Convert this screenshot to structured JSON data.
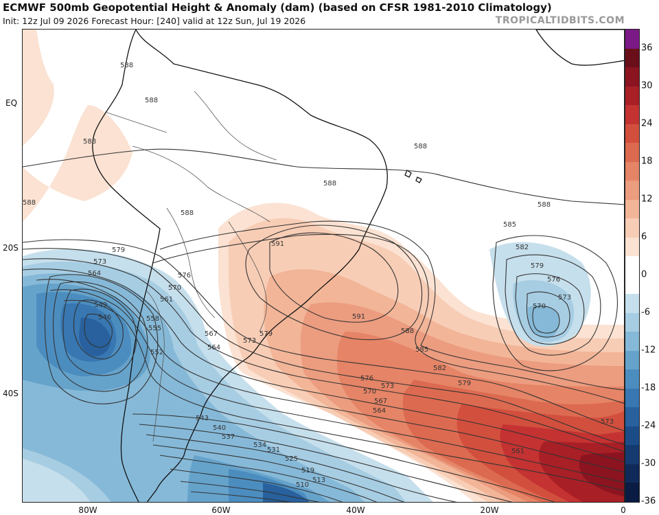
{
  "header": {
    "title": "ECMWF 500mb Geopotential Height & Anomaly (dam) (based on CFSR 1981-2010 Climatology)",
    "subtitle": "Init: 12z Jul 09 2026   Forecast Hour: [240]   valid at 12z Sun, Jul 19 2026",
    "credit": "TROPICALTIDBITS.COM"
  },
  "axes": {
    "lat_labels": [
      "EQ",
      "20S",
      "40S"
    ],
    "lon_labels": [
      "80W",
      "60W",
      "40W",
      "20W",
      "0"
    ]
  },
  "colorbar": {
    "ticks": [
      "36",
      "30",
      "24",
      "18",
      "12",
      "6",
      "0",
      "-6",
      "-12",
      "-18",
      "-24",
      "-30",
      "-36"
    ],
    "colors": [
      "#7b1a86",
      "#6a0f1a",
      "#8b1420",
      "#a91f26",
      "#c43232",
      "#d24f3e",
      "#dc6a50",
      "#e58466",
      "#ec9c7f",
      "#f2b598",
      "#f8cdb5",
      "#fbe2d2",
      "#ffffff",
      "#ffffff",
      "#c6dfec",
      "#a7cde3",
      "#86b9d8",
      "#66a3cb",
      "#4c8dbf",
      "#3877b1",
      "#28619e",
      "#1c4c88",
      "#153a70",
      "#0f2a58",
      "#0a1c44"
    ]
  },
  "contour_labels": [
    "588",
    "588",
    "588",
    "588",
    "588",
    "588",
    "588",
    "588",
    "591",
    "591",
    "588",
    "585",
    "582",
    "579",
    "576",
    "573",
    "570",
    "567",
    "564",
    "585",
    "582",
    "579",
    "576",
    "573",
    "570",
    "579",
    "573",
    "564",
    "549",
    "546",
    "558",
    "555",
    "552",
    "576",
    "570",
    "561",
    "567",
    "564",
    "573",
    "579",
    "543",
    "540",
    "537",
    "534",
    "531",
    "525",
    "519",
    "513",
    "510",
    "582",
    "579",
    "576",
    "561",
    "573"
  ],
  "icons": {
    "map": "south-america-atlantic-map"
  }
}
